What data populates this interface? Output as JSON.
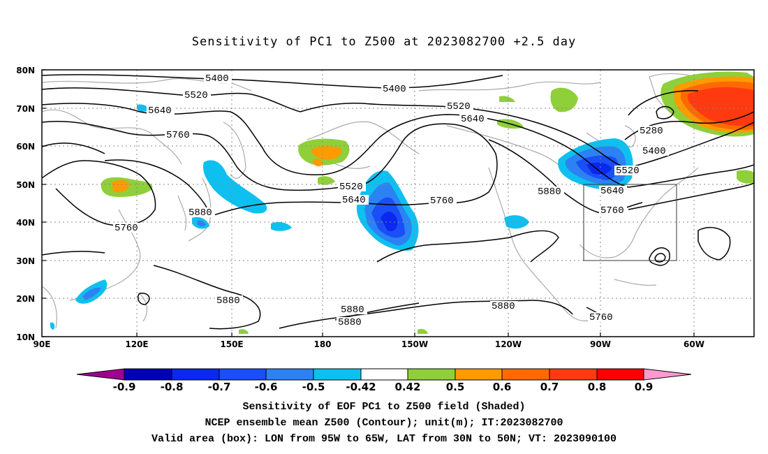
{
  "title": "Sensitivity of PC1 to Z500 at 2023082700 +2.5 day",
  "map": {
    "lat_labels": [
      "80N",
      "70N",
      "60N",
      "50N",
      "40N",
      "30N",
      "20N",
      "10N"
    ],
    "lon_labels": [
      "90E",
      "120E",
      "150E",
      "180",
      "150W",
      "120W",
      "90W",
      "60W"
    ],
    "colors": {
      "neg09": "#9f0090",
      "neg08": "#0000b4",
      "neg07": "#0a28ee",
      "neg06": "#1a4ef6",
      "neg05": "#2c82f2",
      "neg042": "#0ec0f0",
      "pos05": "#8fcf3a",
      "pos06": "#ff9a00",
      "pos07": "#ff6a00",
      "pos08": "#ff3a10",
      "pos09": "#ff0000",
      "pos_ext": "#ff9ad0",
      "coast": "#aaaaaa",
      "contour": "#000000"
    },
    "contour_labels": [
      "5400",
      "5400",
      "5520",
      "5640",
      "5760",
      "5760",
      "5880",
      "5520",
      "5640",
      "5760",
      "5520",
      "5640",
      "5760",
      "5880",
      "5880",
      "5880",
      "5880",
      "5880",
      "5280",
      "5400",
      "5520",
      "5640",
      "5760"
    ],
    "valid_box": "LON from 95W to 65W, LAT from 30N to 50N"
  },
  "colorbar": {
    "labels": [
      "-0.9",
      "-0.8",
      "-0.7",
      "-0.6",
      "-0.5",
      "-0.42",
      "0.42",
      "0.5",
      "0.6",
      "0.7",
      "0.8",
      "0.9"
    ]
  },
  "captions": {
    "line1": "Sensitivity of EOF PC1 to Z500 field (Shaded)",
    "line2": "NCEP ensemble mean Z500 (Contour); unit(m); IT:2023082700",
    "line3": "Valid area (box): LON from 95W to 65W, LAT from 30N to 50N; VT: 2023090100"
  }
}
